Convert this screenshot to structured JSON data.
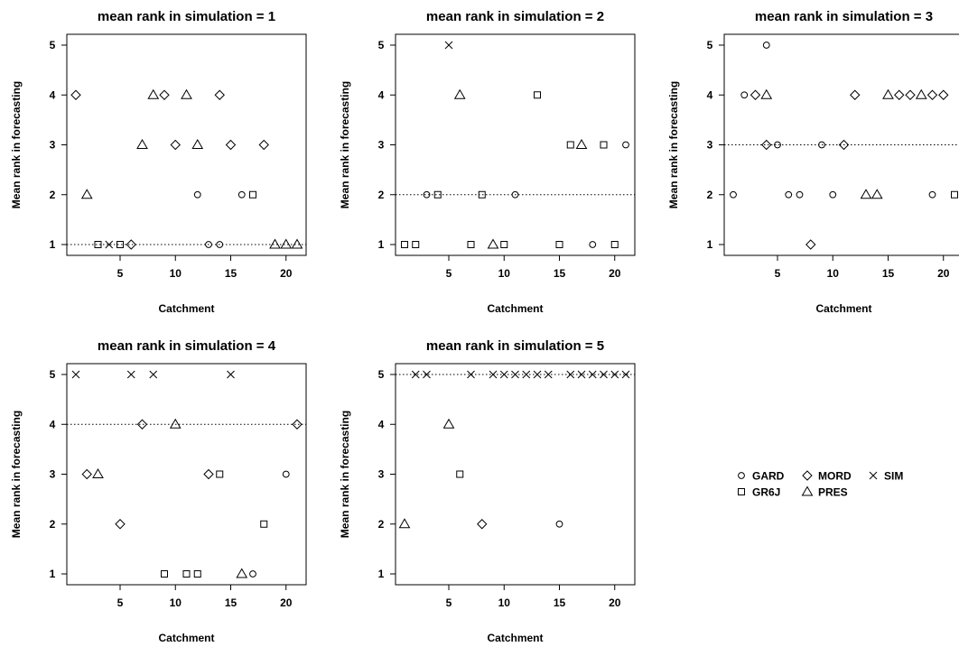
{
  "legend": [
    {
      "model": "GARD",
      "symbol": "circle"
    },
    {
      "model": "MORD",
      "symbol": "diamond"
    },
    {
      "model": "SIM",
      "symbol": "cross"
    },
    {
      "model": "GR6J",
      "symbol": "square"
    },
    {
      "model": "PRES",
      "symbol": "triangle"
    }
  ],
  "chart_data": [
    {
      "type": "scatter",
      "title": "mean rank in simulation = 1",
      "xlabel": "Catchment",
      "ylabel": "Mean rank in forecasting",
      "xlim": [
        1,
        21
      ],
      "ylim": [
        1,
        5
      ],
      "xticks": [
        5,
        10,
        15,
        20
      ],
      "yticks": [
        1,
        2,
        3,
        4,
        5
      ],
      "reference_line_y": 1,
      "points": [
        {
          "x": 1,
          "y": 4,
          "model": "MORD"
        },
        {
          "x": 2,
          "y": 2,
          "model": "PRES"
        },
        {
          "x": 3,
          "y": 1,
          "model": "GR6J"
        },
        {
          "x": 4,
          "y": 1,
          "model": "SIM"
        },
        {
          "x": 5,
          "y": 1,
          "model": "GR6J"
        },
        {
          "x": 6,
          "y": 1,
          "model": "MORD"
        },
        {
          "x": 7,
          "y": 3,
          "model": "PRES"
        },
        {
          "x": 8,
          "y": 4,
          "model": "PRES"
        },
        {
          "x": 9,
          "y": 4,
          "model": "MORD"
        },
        {
          "x": 10,
          "y": 3,
          "model": "MORD"
        },
        {
          "x": 11,
          "y": 4,
          "model": "PRES"
        },
        {
          "x": 12,
          "y": 3,
          "model": "PRES"
        },
        {
          "x": 12,
          "y": 2,
          "model": "GARD"
        },
        {
          "x": 13,
          "y": 1,
          "model": "GARD"
        },
        {
          "x": 14,
          "y": 4,
          "model": "MORD"
        },
        {
          "x": 14,
          "y": 1,
          "model": "GARD"
        },
        {
          "x": 15,
          "y": 3,
          "model": "MORD"
        },
        {
          "x": 16,
          "y": 2,
          "model": "GARD"
        },
        {
          "x": 17,
          "y": 2,
          "model": "GR6J"
        },
        {
          "x": 18,
          "y": 3,
          "model": "MORD"
        },
        {
          "x": 19,
          "y": 1,
          "model": "PRES"
        },
        {
          "x": 20,
          "y": 1,
          "model": "PRES"
        },
        {
          "x": 21,
          "y": 1,
          "model": "PRES"
        }
      ]
    },
    {
      "type": "scatter",
      "title": "mean rank in simulation = 2",
      "xlabel": "Catchment",
      "ylabel": "Mean rank in forecasting",
      "xlim": [
        1,
        21
      ],
      "ylim": [
        1,
        5
      ],
      "xticks": [
        5,
        10,
        15,
        20
      ],
      "yticks": [
        1,
        2,
        3,
        4,
        5
      ],
      "reference_line_y": 2,
      "points": [
        {
          "x": 1,
          "y": 1,
          "model": "GR6J"
        },
        {
          "x": 2,
          "y": 1,
          "model": "GR6J"
        },
        {
          "x": 3,
          "y": 2,
          "model": "GARD"
        },
        {
          "x": 4,
          "y": 2,
          "model": "GR6J"
        },
        {
          "x": 5,
          "y": 5,
          "model": "SIM"
        },
        {
          "x": 6,
          "y": 4,
          "model": "PRES"
        },
        {
          "x": 7,
          "y": 1,
          "model": "GR6J"
        },
        {
          "x": 8,
          "y": 2,
          "model": "GR6J"
        },
        {
          "x": 9,
          "y": 1,
          "model": "PRES"
        },
        {
          "x": 10,
          "y": 1,
          "model": "GR6J"
        },
        {
          "x": 11,
          "y": 2,
          "model": "GARD"
        },
        {
          "x": 13,
          "y": 4,
          "model": "GR6J"
        },
        {
          "x": 15,
          "y": 1,
          "model": "GR6J"
        },
        {
          "x": 16,
          "y": 3,
          "model": "GR6J"
        },
        {
          "x": 17,
          "y": 3,
          "model": "PRES"
        },
        {
          "x": 18,
          "y": 1,
          "model": "GARD"
        },
        {
          "x": 19,
          "y": 3,
          "model": "GR6J"
        },
        {
          "x": 20,
          "y": 1,
          "model": "GR6J"
        },
        {
          "x": 21,
          "y": 3,
          "model": "GARD"
        }
      ]
    },
    {
      "type": "scatter",
      "title": "mean rank in simulation = 3",
      "xlabel": "Catchment",
      "ylabel": "Mean rank in forecasting",
      "xlim": [
        1,
        21
      ],
      "ylim": [
        1,
        5
      ],
      "xticks": [
        5,
        10,
        15,
        20
      ],
      "yticks": [
        1,
        2,
        3,
        4,
        5
      ],
      "reference_line_y": 3,
      "points": [
        {
          "x": 1,
          "y": 2,
          "model": "GARD"
        },
        {
          "x": 2,
          "y": 4,
          "model": "GARD"
        },
        {
          "x": 3,
          "y": 4,
          "model": "MORD"
        },
        {
          "x": 4,
          "y": 5,
          "model": "GARD"
        },
        {
          "x": 4,
          "y": 4,
          "model": "PRES"
        },
        {
          "x": 4,
          "y": 3,
          "model": "MORD"
        },
        {
          "x": 5,
          "y": 3,
          "model": "GARD"
        },
        {
          "x": 6,
          "y": 2,
          "model": "GARD"
        },
        {
          "x": 7,
          "y": 2,
          "model": "GARD"
        },
        {
          "x": 8,
          "y": 1,
          "model": "MORD"
        },
        {
          "x": 9,
          "y": 3,
          "model": "GARD"
        },
        {
          "x": 10,
          "y": 2,
          "model": "GARD"
        },
        {
          "x": 11,
          "y": 3,
          "model": "MORD"
        },
        {
          "x": 12,
          "y": 4,
          "model": "MORD"
        },
        {
          "x": 13,
          "y": 2,
          "model": "PRES"
        },
        {
          "x": 14,
          "y": 2,
          "model": "PRES"
        },
        {
          "x": 15,
          "y": 4,
          "model": "PRES"
        },
        {
          "x": 16,
          "y": 4,
          "model": "MORD"
        },
        {
          "x": 17,
          "y": 4,
          "model": "MORD"
        },
        {
          "x": 18,
          "y": 4,
          "model": "PRES"
        },
        {
          "x": 19,
          "y": 4,
          "model": "MORD"
        },
        {
          "x": 19,
          "y": 2,
          "model": "GARD"
        },
        {
          "x": 20,
          "y": 4,
          "model": "MORD"
        },
        {
          "x": 21,
          "y": 2,
          "model": "GR6J"
        }
      ]
    },
    {
      "type": "scatter",
      "title": "mean rank in simulation = 4",
      "xlabel": "Catchment",
      "ylabel": "Mean rank in forecasting",
      "xlim": [
        1,
        21
      ],
      "ylim": [
        1,
        5
      ],
      "xticks": [
        5,
        10,
        15,
        20
      ],
      "yticks": [
        1,
        2,
        3,
        4,
        5
      ],
      "reference_line_y": 4,
      "points": [
        {
          "x": 1,
          "y": 5,
          "model": "SIM"
        },
        {
          "x": 2,
          "y": 3,
          "model": "MORD"
        },
        {
          "x": 3,
          "y": 3,
          "model": "PRES"
        },
        {
          "x": 5,
          "y": 2,
          "model": "MORD"
        },
        {
          "x": 6,
          "y": 5,
          "model": "SIM"
        },
        {
          "x": 7,
          "y": 4,
          "model": "MORD"
        },
        {
          "x": 8,
          "y": 5,
          "model": "SIM"
        },
        {
          "x": 9,
          "y": 1,
          "model": "GR6J"
        },
        {
          "x": 10,
          "y": 4,
          "model": "PRES"
        },
        {
          "x": 11,
          "y": 1,
          "model": "GR6J"
        },
        {
          "x": 12,
          "y": 1,
          "model": "GR6J"
        },
        {
          "x": 13,
          "y": 3,
          "model": "MORD"
        },
        {
          "x": 14,
          "y": 3,
          "model": "GR6J"
        },
        {
          "x": 15,
          "y": 5,
          "model": "SIM"
        },
        {
          "x": 16,
          "y": 1,
          "model": "PRES"
        },
        {
          "x": 17,
          "y": 1,
          "model": "GARD"
        },
        {
          "x": 18,
          "y": 2,
          "model": "GR6J"
        },
        {
          "x": 20,
          "y": 3,
          "model": "GARD"
        },
        {
          "x": 21,
          "y": 4,
          "model": "MORD"
        }
      ]
    },
    {
      "type": "scatter",
      "title": "mean rank in simulation = 5",
      "xlabel": "Catchment",
      "ylabel": "Mean rank in forecasting",
      "xlim": [
        1,
        21
      ],
      "ylim": [
        1,
        5
      ],
      "xticks": [
        5,
        10,
        15,
        20
      ],
      "yticks": [
        1,
        2,
        3,
        4,
        5
      ],
      "reference_line_y": 5,
      "points": [
        {
          "x": 1,
          "y": 2,
          "model": "PRES"
        },
        {
          "x": 2,
          "y": 5,
          "model": "SIM"
        },
        {
          "x": 3,
          "y": 5,
          "model": "SIM"
        },
        {
          "x": 5,
          "y": 4,
          "model": "PRES"
        },
        {
          "x": 6,
          "y": 3,
          "model": "GR6J"
        },
        {
          "x": 7,
          "y": 5,
          "model": "SIM"
        },
        {
          "x": 8,
          "y": 2,
          "model": "MORD"
        },
        {
          "x": 9,
          "y": 5,
          "model": "SIM"
        },
        {
          "x": 10,
          "y": 5,
          "model": "SIM"
        },
        {
          "x": 11,
          "y": 5,
          "model": "SIM"
        },
        {
          "x": 12,
          "y": 5,
          "model": "SIM"
        },
        {
          "x": 13,
          "y": 5,
          "model": "SIM"
        },
        {
          "x": 14,
          "y": 5,
          "model": "SIM"
        },
        {
          "x": 15,
          "y": 2,
          "model": "GARD"
        },
        {
          "x": 16,
          "y": 5,
          "model": "SIM"
        },
        {
          "x": 17,
          "y": 5,
          "model": "SIM"
        },
        {
          "x": 18,
          "y": 5,
          "model": "SIM"
        },
        {
          "x": 19,
          "y": 5,
          "model": "SIM"
        },
        {
          "x": 20,
          "y": 5,
          "model": "SIM"
        },
        {
          "x": 21,
          "y": 5,
          "model": "SIM"
        }
      ]
    }
  ]
}
